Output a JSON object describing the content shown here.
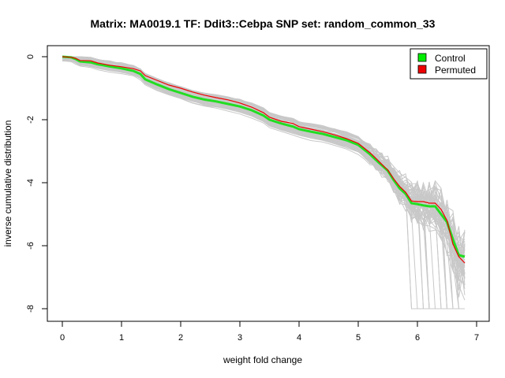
{
  "chart_data": {
    "type": "line",
    "title": "Matrix: MA0019.1 TF: Ddit3::Cebpa SNP set: random_common_33",
    "xlabel": "weight fold change",
    "ylabel": "inverse cumulative distribution",
    "xlim": [
      0,
      7
    ],
    "ylim": [
      -8,
      0
    ],
    "xticks": [
      "0",
      "1",
      "2",
      "3",
      "4",
      "5",
      "6",
      "7"
    ],
    "yticks": [
      "0",
      "-2",
      "-4",
      "-6",
      "-8"
    ],
    "grid": false,
    "legend_position": "top-right",
    "legend": [
      {
        "label": "Control",
        "color": "#00ee00"
      },
      {
        "label": "Permuted",
        "color": "#ee0000"
      }
    ],
    "series": [
      {
        "name": "Control",
        "color": "#22dd22",
        "x": [
          0,
          0.15,
          0.22,
          0.3,
          0.48,
          0.6,
          0.8,
          1.0,
          1.2,
          1.32,
          1.4,
          1.6,
          1.8,
          2.0,
          2.2,
          2.4,
          2.6,
          2.8,
          3.0,
          3.2,
          3.4,
          3.5,
          3.7,
          3.9,
          4.0,
          4.2,
          4.4,
          4.6,
          4.8,
          5.0,
          5.1,
          5.2,
          5.3,
          5.4,
          5.5,
          5.6,
          5.7,
          5.8,
          5.9,
          6.0,
          6.1,
          6.2,
          6.3,
          6.4,
          6.5,
          6.6,
          6.7,
          6.8
        ],
        "y": [
          0,
          -0.02,
          -0.07,
          -0.15,
          -0.18,
          -0.24,
          -0.31,
          -0.37,
          -0.45,
          -0.55,
          -0.72,
          -0.88,
          -1.03,
          -1.15,
          -1.27,
          -1.36,
          -1.42,
          -1.5,
          -1.58,
          -1.7,
          -1.87,
          -2.0,
          -2.12,
          -2.22,
          -2.3,
          -2.38,
          -2.45,
          -2.55,
          -2.65,
          -2.8,
          -2.95,
          -3.1,
          -3.28,
          -3.45,
          -3.62,
          -3.92,
          -4.18,
          -4.35,
          -4.65,
          -4.68,
          -4.72,
          -4.75,
          -4.75,
          -5.0,
          -5.25,
          -5.8,
          -6.3,
          -6.35
        ]
      },
      {
        "name": "Permuted",
        "color": "#ee0000",
        "x": [
          0,
          0.15,
          0.22,
          0.3,
          0.48,
          0.6,
          0.8,
          1.0,
          1.2,
          1.32,
          1.4,
          1.6,
          1.8,
          2.0,
          2.2,
          2.4,
          2.6,
          2.8,
          3.0,
          3.2,
          3.4,
          3.5,
          3.7,
          3.9,
          4.0,
          4.2,
          4.4,
          4.6,
          4.8,
          5.0,
          5.1,
          5.2,
          5.3,
          5.4,
          5.5,
          5.6,
          5.7,
          5.8,
          5.9,
          6.0,
          6.1,
          6.2,
          6.3,
          6.4,
          6.5,
          6.6,
          6.7,
          6.8
        ],
        "y": [
          0,
          -0.02,
          -0.05,
          -0.12,
          -0.13,
          -0.2,
          -0.27,
          -0.32,
          -0.38,
          -0.45,
          -0.6,
          -0.75,
          -0.9,
          -1.0,
          -1.12,
          -1.22,
          -1.3,
          -1.37,
          -1.47,
          -1.6,
          -1.78,
          -1.92,
          -2.05,
          -2.12,
          -2.22,
          -2.3,
          -2.38,
          -2.48,
          -2.6,
          -2.75,
          -2.9,
          -3.05,
          -3.23,
          -3.42,
          -3.6,
          -3.88,
          -4.12,
          -4.3,
          -4.58,
          -4.6,
          -4.6,
          -4.65,
          -4.65,
          -4.85,
          -5.2,
          -5.95,
          -6.35,
          -6.55
        ]
      }
    ]
  }
}
